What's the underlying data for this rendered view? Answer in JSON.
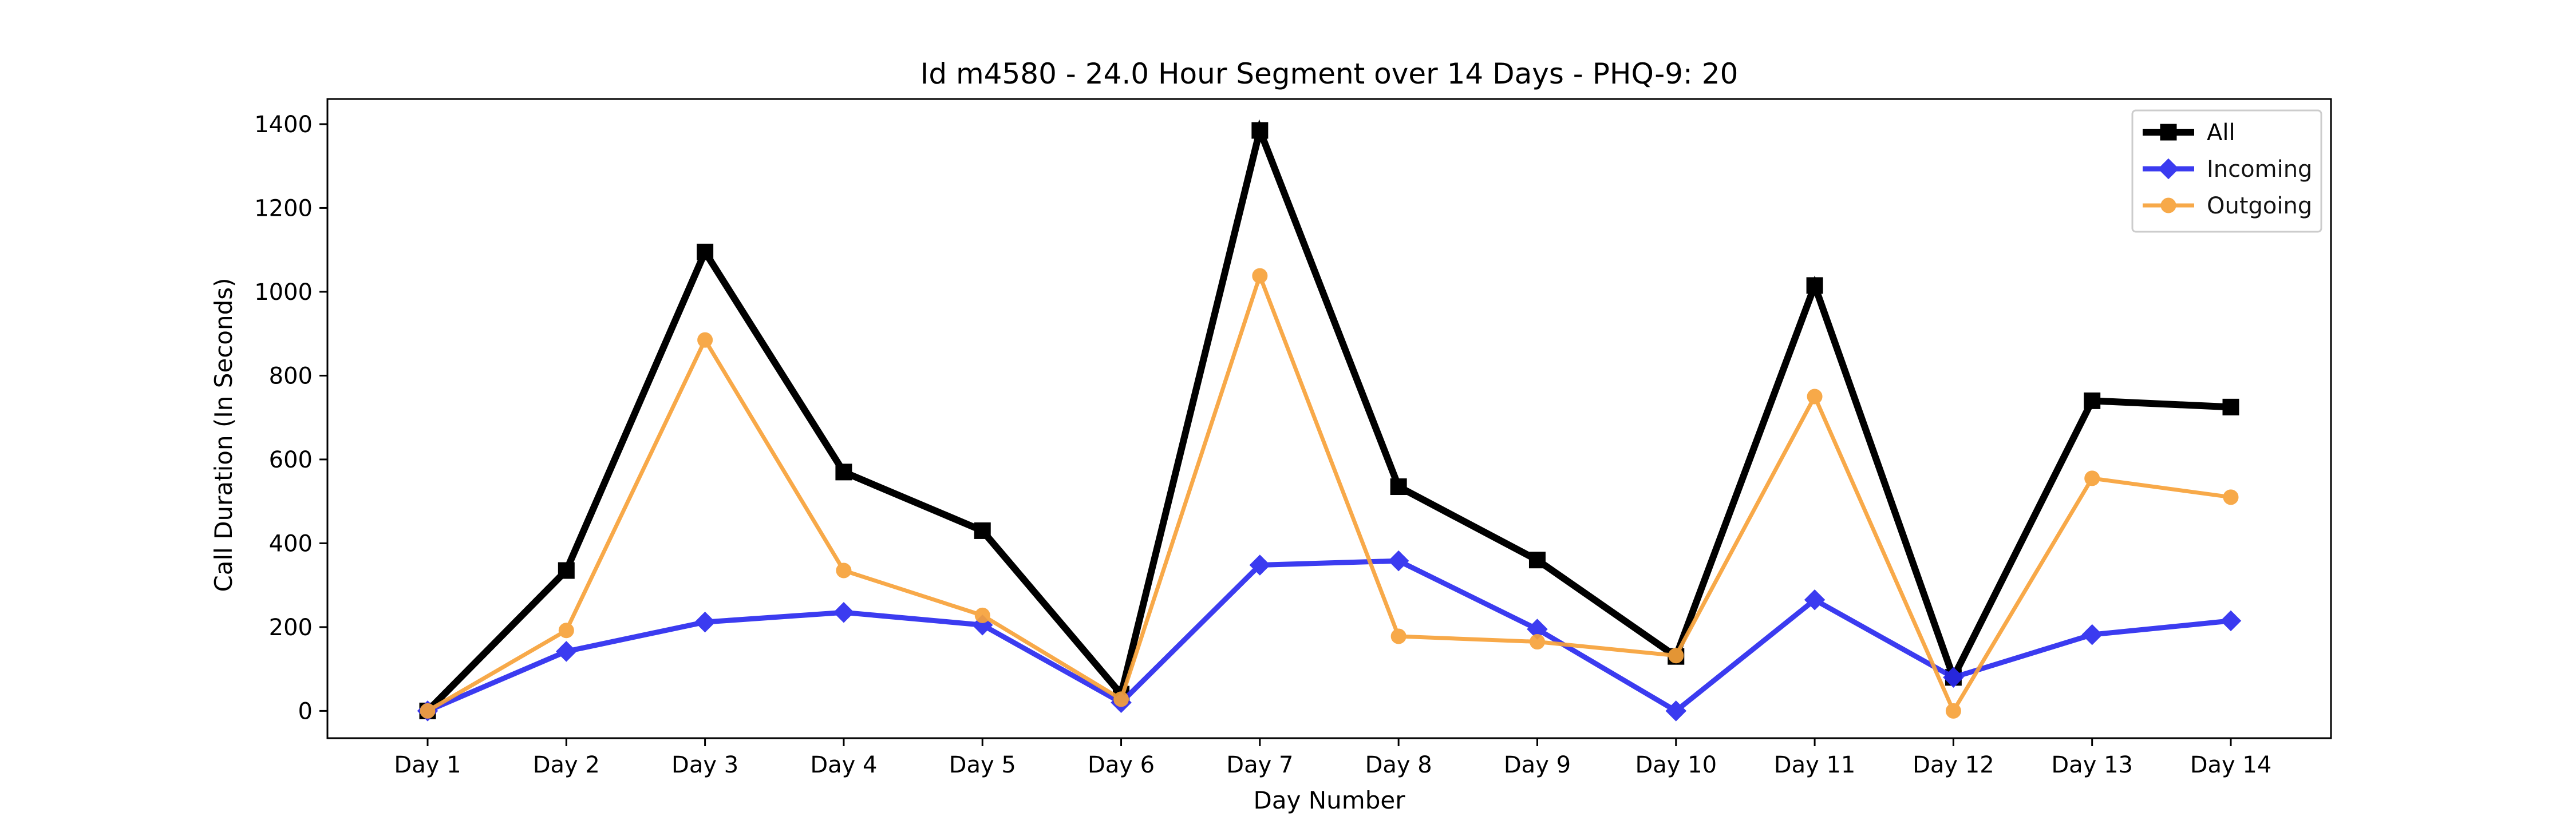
{
  "chart_data": {
    "type": "line",
    "title": "Id m4580 - 24.0 Hour Segment over 14 Days - PHQ-9: 20",
    "xlabel": "Day Number",
    "ylabel": "Call Duration (In Seconds)",
    "categories": [
      "Day 1",
      "Day 2",
      "Day 3",
      "Day 4",
      "Day 5",
      "Day 6",
      "Day 7",
      "Day 8",
      "Day 9",
      "Day 10",
      "Day 11",
      "Day 12",
      "Day 13",
      "Day 14"
    ],
    "ylim": [
      -65,
      1460
    ],
    "yticks": [
      0,
      200,
      400,
      600,
      800,
      1000,
      1200,
      1400
    ],
    "grid": false,
    "legend_position": "top-right",
    "series": [
      {
        "name": "All",
        "color": "#000000",
        "marker": "square",
        "values": [
          0,
          335,
          1095,
          570,
          430,
          40,
          1385,
          535,
          360,
          130,
          1015,
          80,
          740,
          725
        ]
      },
      {
        "name": "Incoming",
        "color": "#2b2bef",
        "marker": "diamond",
        "values": [
          0,
          142,
          212,
          235,
          205,
          20,
          348,
          358,
          195,
          0,
          265,
          80,
          182,
          215
        ]
      },
      {
        "name": "Outgoing",
        "color": "#f7a23a",
        "marker": "circle",
        "values": [
          0,
          192,
          885,
          335,
          228,
          28,
          1038,
          178,
          165,
          132,
          750,
          0,
          555,
          510
        ]
      }
    ]
  }
}
